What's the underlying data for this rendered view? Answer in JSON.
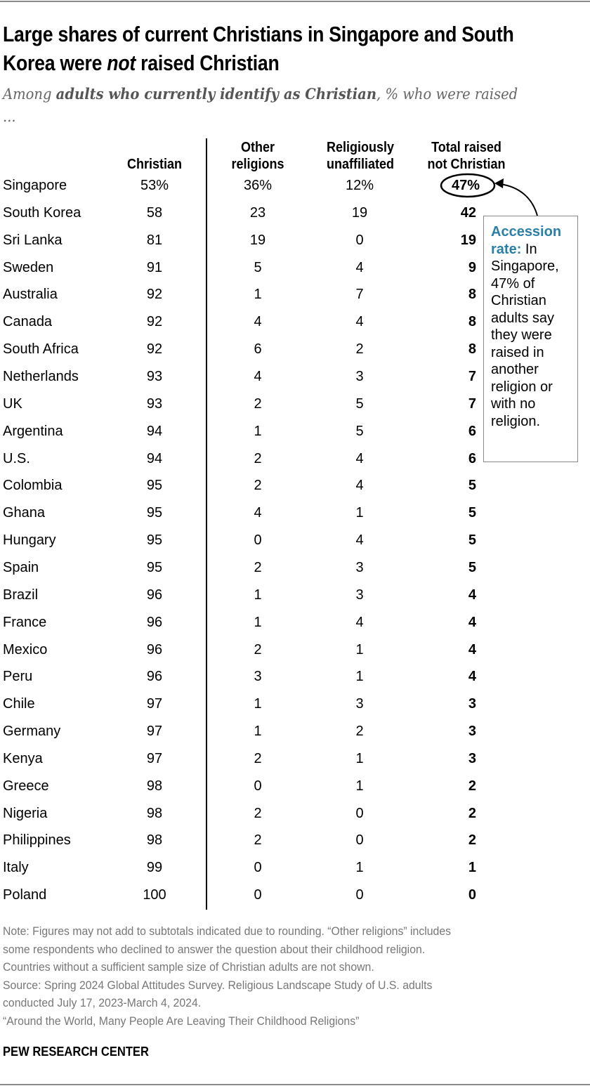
{
  "title": "Large shares of current Christians in Singapore and South Korea were not raised Christian",
  "title_parts": {
    "before": "Large shares of current Christians in Singapore and South Korea were ",
    "emph": "not",
    "after": " raised Christian"
  },
  "subtitle": {
    "pre": "Among ",
    "bold": "adults who currently identify as Christian",
    "post": ", % who were raised ..."
  },
  "chart_data": {
    "type": "table",
    "columns": [
      "Christian",
      "Other religions",
      "Religiously unaffiliated",
      "Total raised not Christian"
    ],
    "rows": [
      {
        "country": "Singapore",
        "christian": "53%",
        "other": "36%",
        "unaffiliated": "12%",
        "total": "47%"
      },
      {
        "country": "South Korea",
        "christian": "58",
        "other": "23",
        "unaffiliated": "19",
        "total": "42"
      },
      {
        "country": "Sri Lanka",
        "christian": "81",
        "other": "19",
        "unaffiliated": "0",
        "total": "19"
      },
      {
        "country": "Sweden",
        "christian": "91",
        "other": "5",
        "unaffiliated": "4",
        "total": "9"
      },
      {
        "country": "Australia",
        "christian": "92",
        "other": "1",
        "unaffiliated": "7",
        "total": "8"
      },
      {
        "country": "Canada",
        "christian": "92",
        "other": "4",
        "unaffiliated": "4",
        "total": "8"
      },
      {
        "country": "South Africa",
        "christian": "92",
        "other": "6",
        "unaffiliated": "2",
        "total": "8"
      },
      {
        "country": "Netherlands",
        "christian": "93",
        "other": "4",
        "unaffiliated": "3",
        "total": "7"
      },
      {
        "country": "UK",
        "christian": "93",
        "other": "2",
        "unaffiliated": "5",
        "total": "7"
      },
      {
        "country": "Argentina",
        "christian": "94",
        "other": "1",
        "unaffiliated": "5",
        "total": "6"
      },
      {
        "country": "U.S.",
        "christian": "94",
        "other": "2",
        "unaffiliated": "4",
        "total": "6"
      },
      {
        "country": "Colombia",
        "christian": "95",
        "other": "2",
        "unaffiliated": "4",
        "total": "5"
      },
      {
        "country": "Ghana",
        "christian": "95",
        "other": "4",
        "unaffiliated": "1",
        "total": "5"
      },
      {
        "country": "Hungary",
        "christian": "95",
        "other": "0",
        "unaffiliated": "4",
        "total": "5"
      },
      {
        "country": "Spain",
        "christian": "95",
        "other": "2",
        "unaffiliated": "3",
        "total": "5"
      },
      {
        "country": "Brazil",
        "christian": "96",
        "other": "1",
        "unaffiliated": "3",
        "total": "4"
      },
      {
        "country": "France",
        "christian": "96",
        "other": "1",
        "unaffiliated": "4",
        "total": "4"
      },
      {
        "country": "Mexico",
        "christian": "96",
        "other": "2",
        "unaffiliated": "1",
        "total": "4"
      },
      {
        "country": "Peru",
        "christian": "96",
        "other": "3",
        "unaffiliated": "1",
        "total": "4"
      },
      {
        "country": "Chile",
        "christian": "97",
        "other": "1",
        "unaffiliated": "3",
        "total": "3"
      },
      {
        "country": "Germany",
        "christian": "97",
        "other": "1",
        "unaffiliated": "2",
        "total": "3"
      },
      {
        "country": "Kenya",
        "christian": "97",
        "other": "2",
        "unaffiliated": "1",
        "total": "3"
      },
      {
        "country": "Greece",
        "christian": "98",
        "other": "0",
        "unaffiliated": "1",
        "total": "2"
      },
      {
        "country": "Nigeria",
        "christian": "98",
        "other": "2",
        "unaffiliated": "0",
        "total": "2"
      },
      {
        "country": "Philippines",
        "christian": "98",
        "other": "2",
        "unaffiliated": "0",
        "total": "2"
      },
      {
        "country": "Italy",
        "christian": "99",
        "other": "0",
        "unaffiliated": "1",
        "total": "1"
      },
      {
        "country": "Poland",
        "christian": "100",
        "other": "0",
        "unaffiliated": "0",
        "total": "0"
      }
    ]
  },
  "headers": {
    "christian": "Christian",
    "other_1": "Other",
    "other_2": "religions",
    "unaff_1": "Religiously",
    "unaff_2": "unaffiliated",
    "total_1": "Total raised",
    "total_2": "not Christian"
  },
  "callout": {
    "lead": "Accession rate:",
    "text": " In Singapore, 47% of Christian adults say they were raised in another religion or with no religion.",
    "accent_color": "#2a7fa8"
  },
  "notes": [
    "Note: Figures may not add to subtotals indicated due to rounding. “Other religions” includes",
    "some respondents who declined to answer the question about their childhood religion.",
    "Countries without a sufficient sample size of Christian adults are not shown.",
    "Source: Spring 2024 Global Attitudes Survey. Religious Landscape Study of U.S. adults",
    "conducted July 17, 2023-March 4, 2024.",
    "“Around the World, Many People Are Leaving Their Childhood Religions”"
  ],
  "brand": "PEW RESEARCH CENTER"
}
